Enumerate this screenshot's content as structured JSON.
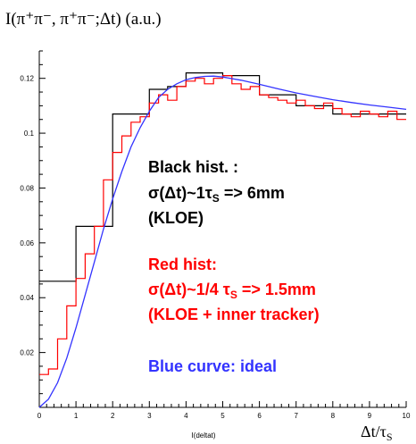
{
  "chart_data": {
    "type": "line",
    "title": "I(π⁺π⁻, π⁺π⁻;Δt)  (a.u.)",
    "xlabel": "Δt/τ",
    "xlabel_sub": "S",
    "xlabel_small": "I(deltat)",
    "xlim": [
      0,
      10
    ],
    "ylim": [
      0,
      0.13
    ],
    "x_ticks": [
      "0",
      "1",
      "2",
      "3",
      "4",
      "5",
      "6",
      "7",
      "8",
      "9",
      "10"
    ],
    "y_ticks": [
      "0",
      "0.02",
      "0.04",
      "0.06",
      "0.08",
      "0.1",
      "0.12"
    ],
    "grid": false,
    "series": [
      {
        "name": "Black hist.",
        "kind": "step",
        "color": "#000000",
        "bin_edges": [
          0,
          1,
          1.5,
          2,
          3,
          3.5,
          4,
          5,
          6,
          7,
          8,
          9,
          10
        ],
        "values": [
          0.046,
          0.066,
          0.066,
          0.107,
          0.116,
          0.117,
          0.122,
          0.121,
          0.114,
          0.11,
          0.107,
          0.107
        ]
      },
      {
        "name": "Red hist",
        "kind": "step",
        "color": "#ff0000",
        "bin_edges": [
          0,
          0.25,
          0.5,
          0.75,
          1,
          1.25,
          1.5,
          1.75,
          2,
          2.25,
          2.5,
          2.75,
          3,
          3.25,
          3.5,
          3.75,
          4,
          4.25,
          4.5,
          4.75,
          5,
          5.25,
          5.5,
          5.75,
          6,
          6.25,
          6.5,
          6.75,
          7,
          7.25,
          7.5,
          7.75,
          8,
          8.25,
          8.5,
          8.75,
          9,
          9.25,
          9.5,
          9.75,
          10
        ],
        "values": [
          0.012,
          0.014,
          0.025,
          0.037,
          0.047,
          0.056,
          0.066,
          0.083,
          0.093,
          0.099,
          0.104,
          0.106,
          0.111,
          0.114,
          0.112,
          0.117,
          0.119,
          0.12,
          0.118,
          0.12,
          0.121,
          0.118,
          0.116,
          0.117,
          0.114,
          0.113,
          0.112,
          0.111,
          0.112,
          0.11,
          0.109,
          0.111,
          0.109,
          0.107,
          0.106,
          0.108,
          0.107,
          0.106,
          0.108,
          0.105
        ]
      },
      {
        "name": "Blue curve: ideal",
        "kind": "curve",
        "color": "#3333ff",
        "x": [
          0,
          0.25,
          0.5,
          0.75,
          1,
          1.25,
          1.5,
          1.75,
          2,
          2.25,
          2.5,
          2.75,
          3,
          3.25,
          3.5,
          3.75,
          4,
          4.25,
          4.5,
          4.75,
          5,
          5.5,
          6,
          6.5,
          7,
          7.5,
          8,
          8.5,
          9,
          9.5,
          10
        ],
        "y": [
          0,
          0.003,
          0.009,
          0.018,
          0.029,
          0.041,
          0.053,
          0.065,
          0.076,
          0.086,
          0.095,
          0.102,
          0.108,
          0.113,
          0.116,
          0.118,
          0.1195,
          0.1203,
          0.1207,
          0.1208,
          0.1205,
          0.1193,
          0.1178,
          0.1162,
          0.1147,
          0.1134,
          0.1122,
          0.1112,
          0.1103,
          0.1095,
          0.1087
        ]
      }
    ],
    "annotations": {
      "black_title": "Black hist. :",
      "black_line2_pre": "σ(Δt)~1τ",
      "black_line2_sub": "S",
      "black_line2_post": " => 6mm",
      "black_line3": "(KLOE)",
      "red_title": "Red hist:",
      "red_line2_pre": "σ(Δt)~1/4 τ",
      "red_line2_sub": "S",
      "red_line2_post": " => 1.5mm",
      "red_line3": "(KLOE + inner tracker)",
      "blue_title": "Blue curve: ideal"
    }
  }
}
